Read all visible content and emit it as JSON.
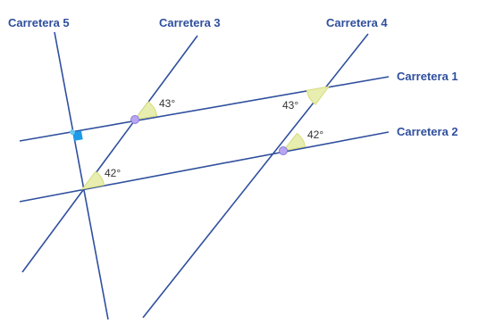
{
  "colors": {
    "line": "#2f4f9e",
    "label": "#2f4f9e",
    "angle_fill": "#e8eeb0",
    "angle_stroke": "#d6dc7a",
    "point_fill": "#b9a6f2",
    "point_stroke": "#8a78d8",
    "right_angle": "#1e9be8",
    "intersection_small": "#6cc7f2"
  },
  "roads": {
    "r1": "Carretera 1",
    "r2": "Carretera 2",
    "r3": "Carretera 3",
    "r4": "Carretera 4",
    "r5": "Carretera 5"
  },
  "angles": {
    "a_r3_r1": "43°",
    "a_r4_r1": "43°",
    "a_r4_r2": "42°",
    "a_r5_r2": "42°"
  }
}
